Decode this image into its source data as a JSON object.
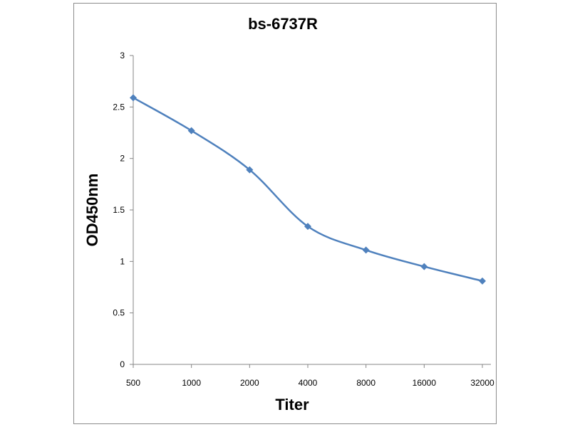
{
  "chart_data": {
    "type": "line",
    "title": "bs-6737R",
    "xlabel": "Titer",
    "ylabel": "OD450nm",
    "categories": [
      "500",
      "1000",
      "2000",
      "4000",
      "8000",
      "16000",
      "32000"
    ],
    "series": [
      {
        "values": [
          2.59,
          2.27,
          1.89,
          1.34,
          1.11,
          0.95,
          0.81
        ]
      }
    ],
    "ylim": [
      0,
      3
    ],
    "yticks": [
      "0",
      "0.5",
      "1",
      "1.5",
      "2",
      "2.5",
      "3"
    ],
    "grid": false,
    "legend": "none",
    "line_color": "#4f81bd",
    "marker": "diamond",
    "smooth": true
  }
}
